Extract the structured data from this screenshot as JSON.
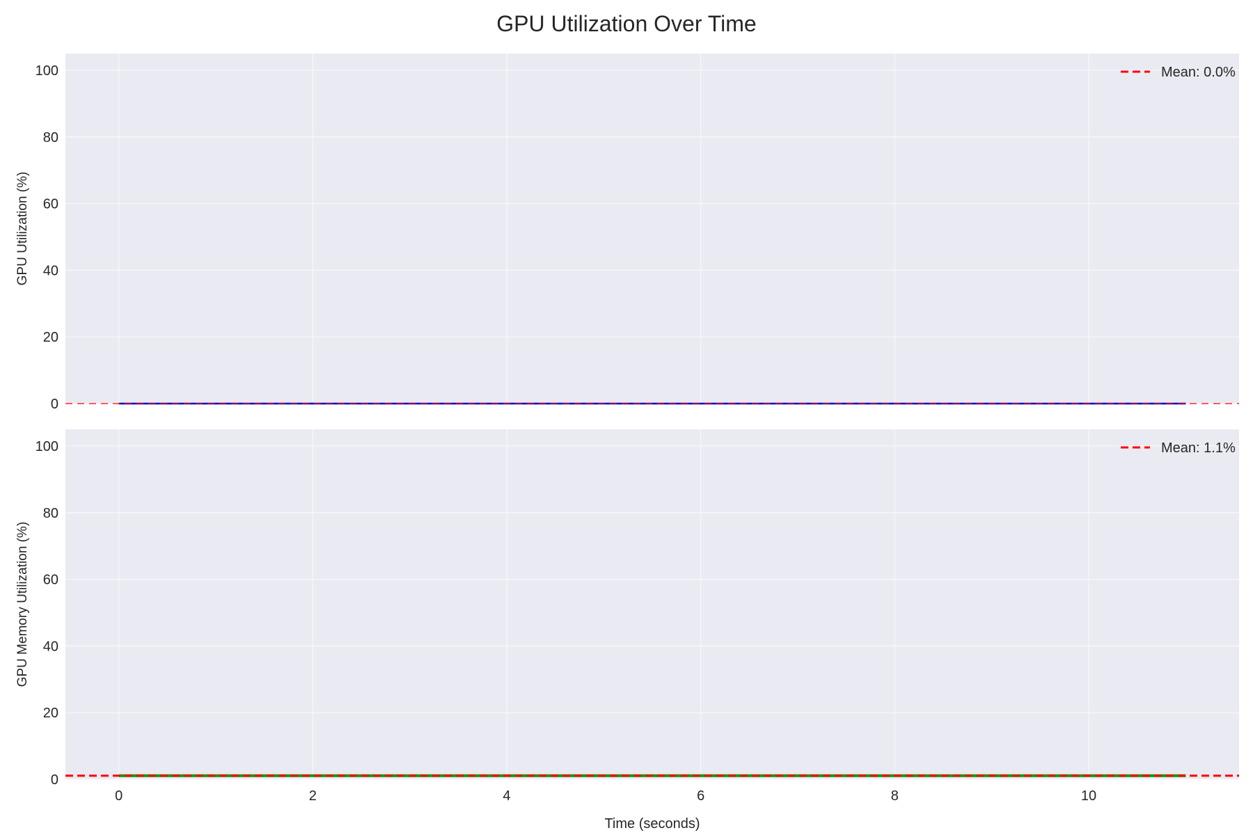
{
  "figure": {
    "title": "GPU Utilization Over Time"
  },
  "colors": {
    "axes_facecolor": "#EAEAF2",
    "grid": "#F7F7FB",
    "mean_line": "#FF0000",
    "gpu_line": "#0000CC",
    "memory_line": "#00A000",
    "text": "#262626"
  },
  "chart_data": [
    {
      "type": "line",
      "title": "",
      "xlabel": "",
      "ylabel": "GPU Utilization (%)",
      "xlim": [
        -0.55,
        11.55
      ],
      "ylim": [
        0,
        105
      ],
      "xticks": [
        0,
        2,
        4,
        6,
        8,
        10
      ],
      "xtick_labels": [
        "",
        "",
        "",
        "",
        "",
        ""
      ],
      "yticks": [
        0,
        20,
        40,
        60,
        80,
        100
      ],
      "ytick_labels": [
        "0",
        "20",
        "40",
        "60",
        "80",
        "100"
      ],
      "grid": true,
      "legend_position": "top-right",
      "series": [
        {
          "x": [
            0,
            11
          ],
          "y": [
            0,
            0
          ],
          "color": "#0000CC",
          "style": "solid"
        }
      ],
      "hlines": [
        {
          "name": "Mean: 0.0%",
          "y": 0.0,
          "color": "#FF0000",
          "style": "dashed",
          "weight": "thin"
        }
      ]
    },
    {
      "type": "line",
      "title": "",
      "xlabel": "Time (seconds)",
      "ylabel": "GPU Memory Utilization (%)",
      "xlim": [
        -0.55,
        11.55
      ],
      "ylim": [
        0,
        105
      ],
      "xticks": [
        0,
        2,
        4,
        6,
        8,
        10
      ],
      "xtick_labels": [
        "0",
        "2",
        "4",
        "6",
        "8",
        "10"
      ],
      "yticks": [
        0,
        20,
        40,
        60,
        80,
        100
      ],
      "ytick_labels": [
        "0",
        "20",
        "40",
        "60",
        "80",
        "100"
      ],
      "grid": true,
      "legend_position": "top-right",
      "series": [
        {
          "x": [
            0,
            11
          ],
          "y": [
            1.1,
            1.1
          ],
          "color": "#00A000",
          "style": "solid"
        }
      ],
      "hlines": [
        {
          "name": "Mean: 1.1%",
          "y": 1.1,
          "color": "#FF0000",
          "style": "dashed",
          "weight": "thick"
        }
      ]
    }
  ]
}
